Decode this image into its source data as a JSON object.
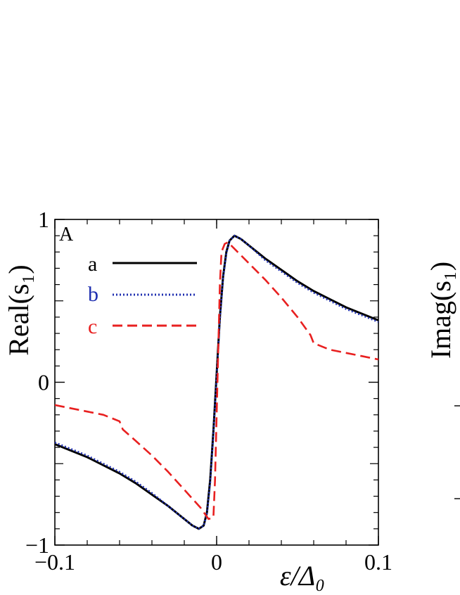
{
  "chart_data": {
    "type": "line",
    "panel_label": "A",
    "ylabel": "Real(s₁)",
    "xlabel": "ε/Δ₀",
    "xlim": [
      -0.1,
      0.1
    ],
    "ylim": [
      -1,
      1
    ],
    "x_ticks": [
      {
        "value": -0.1,
        "label": "−0.1"
      },
      {
        "value": 0,
        "label": "0"
      },
      {
        "value": 0.1,
        "label": "0.1"
      }
    ],
    "y_ticks": [
      {
        "value": -1,
        "label": "−1"
      },
      {
        "value": 0,
        "label": "0"
      },
      {
        "value": 1,
        "label": "1"
      }
    ],
    "legend_position": "top-left",
    "grid": false,
    "series": [
      {
        "name": "a",
        "color": "#000000",
        "style": "solid",
        "points": [
          [
            -0.1,
            -0.38
          ],
          [
            -0.09,
            -0.42
          ],
          [
            -0.08,
            -0.46
          ],
          [
            -0.07,
            -0.51
          ],
          [
            -0.06,
            -0.56
          ],
          [
            -0.05,
            -0.62
          ],
          [
            -0.04,
            -0.69
          ],
          [
            -0.03,
            -0.76
          ],
          [
            -0.02,
            -0.84
          ],
          [
            -0.015,
            -0.88
          ],
          [
            -0.011,
            -0.9
          ],
          [
            -0.008,
            -0.88
          ],
          [
            -0.006,
            -0.8
          ],
          [
            -0.004,
            -0.6
          ],
          [
            -0.002,
            -0.3
          ],
          [
            0,
            0.05
          ],
          [
            0.002,
            0.4
          ],
          [
            0.004,
            0.65
          ],
          [
            0.006,
            0.8
          ],
          [
            0.008,
            0.87
          ],
          [
            0.011,
            0.9
          ],
          [
            0.015,
            0.88
          ],
          [
            0.02,
            0.84
          ],
          [
            0.03,
            0.76
          ],
          [
            0.04,
            0.69
          ],
          [
            0.05,
            0.62
          ],
          [
            0.06,
            0.56
          ],
          [
            0.07,
            0.51
          ],
          [
            0.08,
            0.46
          ],
          [
            0.09,
            0.42
          ],
          [
            0.1,
            0.38
          ]
        ]
      },
      {
        "name": "b",
        "color": "#1f2fb0",
        "style": "dotted",
        "points": [
          [
            -0.1,
            -0.37
          ],
          [
            -0.09,
            -0.41
          ],
          [
            -0.08,
            -0.45
          ],
          [
            -0.07,
            -0.5
          ],
          [
            -0.06,
            -0.55
          ],
          [
            -0.05,
            -0.61
          ],
          [
            -0.04,
            -0.68
          ],
          [
            -0.03,
            -0.76
          ],
          [
            -0.02,
            -0.84
          ],
          [
            -0.015,
            -0.88
          ],
          [
            -0.011,
            -0.9
          ],
          [
            -0.008,
            -0.88
          ],
          [
            -0.006,
            -0.81
          ],
          [
            -0.004,
            -0.62
          ],
          [
            -0.002,
            -0.32
          ],
          [
            0,
            0.03
          ],
          [
            0.002,
            0.38
          ],
          [
            0.004,
            0.64
          ],
          [
            0.006,
            0.79
          ],
          [
            0.008,
            0.87
          ],
          [
            0.011,
            0.9
          ],
          [
            0.015,
            0.88
          ],
          [
            0.02,
            0.84
          ],
          [
            0.03,
            0.75
          ],
          [
            0.04,
            0.68
          ],
          [
            0.05,
            0.61
          ],
          [
            0.06,
            0.55
          ],
          [
            0.07,
            0.5
          ],
          [
            0.08,
            0.45
          ],
          [
            0.09,
            0.41
          ],
          [
            0.1,
            0.37
          ]
        ]
      },
      {
        "name": "c",
        "color": "#e82020",
        "style": "dashed",
        "points": [
          [
            -0.1,
            -0.14
          ],
          [
            -0.09,
            -0.16
          ],
          [
            -0.08,
            -0.18
          ],
          [
            -0.07,
            -0.2
          ],
          [
            -0.06,
            -0.24
          ],
          [
            -0.058,
            -0.29
          ],
          [
            -0.05,
            -0.36
          ],
          [
            -0.04,
            -0.45
          ],
          [
            -0.03,
            -0.55
          ],
          [
            -0.02,
            -0.66
          ],
          [
            -0.01,
            -0.77
          ],
          [
            -0.005,
            -0.84
          ],
          [
            -0.002,
            -0.83
          ],
          [
            -0.001,
            -0.6
          ],
          [
            0,
            -0.2
          ],
          [
            0.001,
            0.2
          ],
          [
            0.002,
            0.6
          ],
          [
            0.003,
            0.8
          ],
          [
            0.005,
            0.85
          ],
          [
            0.007,
            0.86
          ],
          [
            0.01,
            0.83
          ],
          [
            0.02,
            0.73
          ],
          [
            0.03,
            0.63
          ],
          [
            0.04,
            0.52
          ],
          [
            0.05,
            0.4
          ],
          [
            0.058,
            0.29
          ],
          [
            0.06,
            0.24
          ],
          [
            0.07,
            0.2
          ],
          [
            0.08,
            0.18
          ],
          [
            0.09,
            0.16
          ],
          [
            0.1,
            0.14
          ]
        ]
      }
    ]
  }
}
